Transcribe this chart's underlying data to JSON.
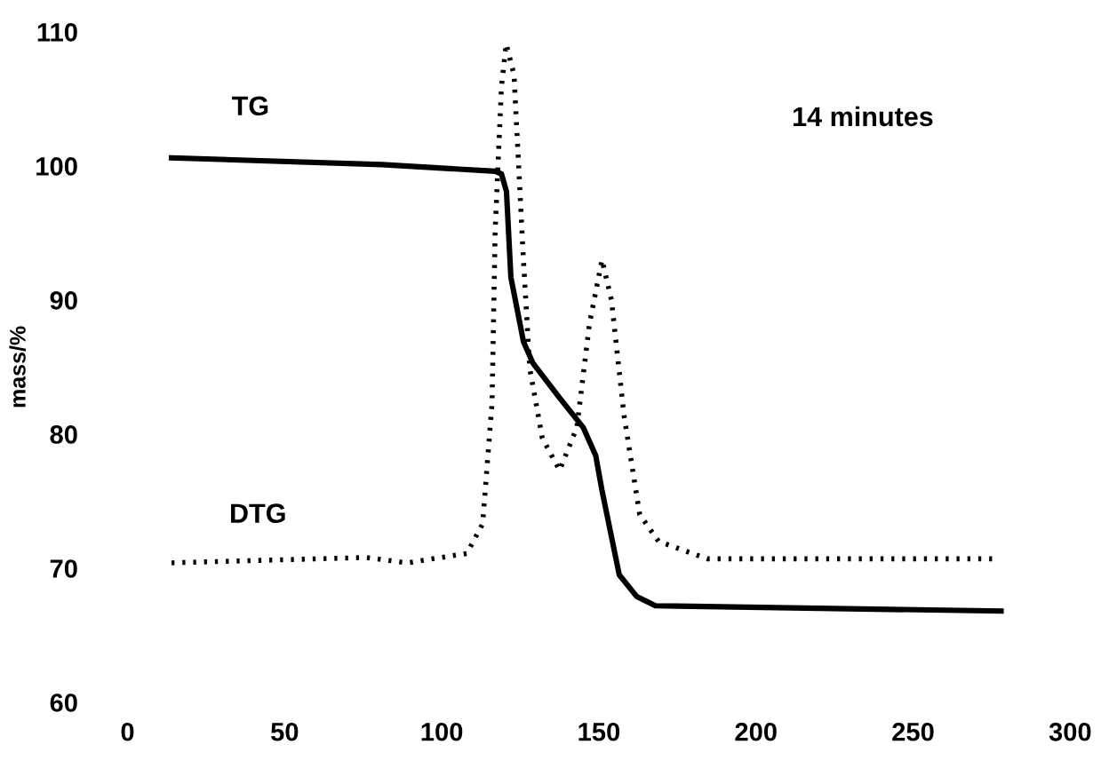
{
  "chart_data": {
    "type": "line",
    "ylabel": "mass/%",
    "xlim": [
      0,
      300
    ],
    "xticks": [
      0,
      50,
      100,
      150,
      200,
      250,
      300
    ],
    "ylim": [
      60,
      110
    ],
    "yticks": [
      60,
      70,
      80,
      90,
      100,
      110
    ],
    "grid": false,
    "legend": false,
    "marker": "none",
    "annotations": [
      "14 minutes"
    ],
    "series": [
      {
        "name": "TG",
        "color": "#000000",
        "line_style": "solid",
        "x": [
          14,
          81,
          117,
          119,
          120.6,
          122,
          126,
          129,
          137.5,
          145,
          149,
          151,
          156.5,
          162,
          168,
          278
        ],
        "values": [
          100.6,
          100.1,
          99.6,
          99.4,
          98.1,
          91.7,
          86.9,
          85.3,
          82.7,
          80.5,
          78.4,
          75.8,
          69.5,
          67.9,
          67.2,
          66.8
        ]
      },
      {
        "name": "DTG",
        "color": "#000000",
        "line_style": "dotted",
        "x": [
          14,
          76,
          89,
          108,
          113,
          116,
          117,
          119,
          120.5,
          123,
          126,
          128,
          132,
          137.5,
          143,
          147,
          151,
          154,
          158,
          163,
          169,
          184.5,
          276
        ],
        "values": [
          70.4,
          70.8,
          70.4,
          71.1,
          73.3,
          82.3,
          95.2,
          105.9,
          109.1,
          106.8,
          93,
          84.9,
          79.7,
          77.3,
          80.5,
          88.2,
          93,
          90,
          81.4,
          74,
          72,
          70.7,
          70.7
        ]
      }
    ]
  }
}
